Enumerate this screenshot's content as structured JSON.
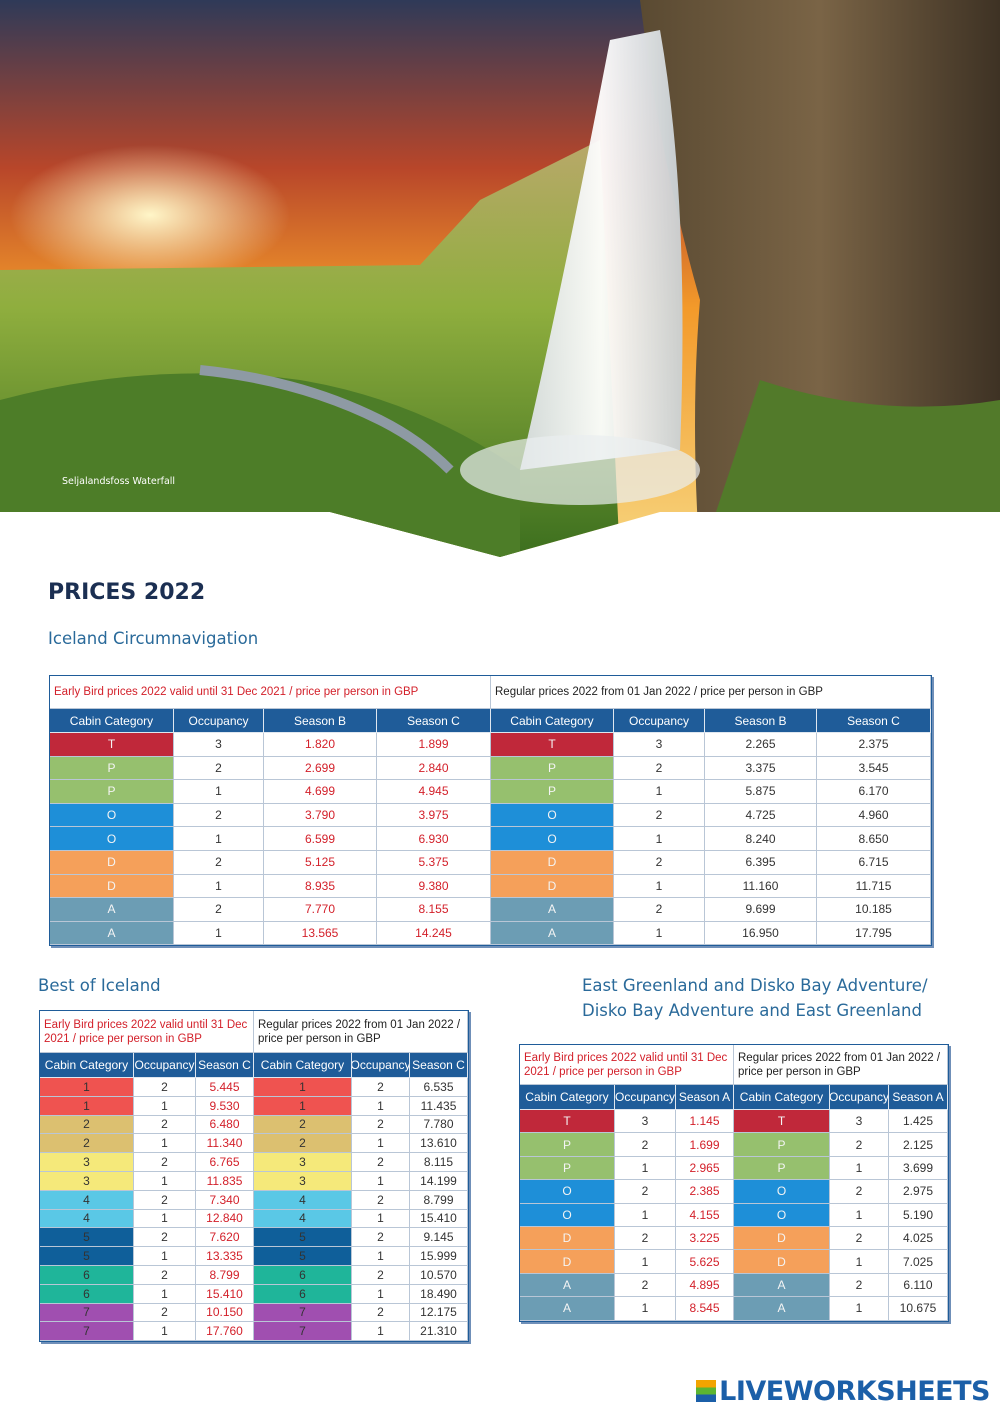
{
  "photo_caption": "Seljalandsfoss Waterfall",
  "heading": "PRICES 2022",
  "sections": [
    {
      "title": "Iceland Circumnavigation",
      "early_caption": "Early Bird prices 2022 valid until 31 Dec 2021 / price per person in GBP",
      "regular_caption": "Regular prices 2022 from 01 Jan 2022 / price per person in GBP",
      "columns": [
        "Cabin Category",
        "Occupancy",
        "Season B",
        "Season C",
        "Cabin Category",
        "Occupancy",
        "Season B",
        "Season C"
      ],
      "row_colors": [
        "#c0283a",
        "#96c06e",
        "#96c06e",
        "#1e8fd8",
        "#1e8fd8",
        "#f5a05a",
        "#f5a05a",
        "#6c9db4",
        "#6c9db4"
      ],
      "rows": [
        [
          "T",
          "3",
          "1.820",
          "1.899",
          "T",
          "3",
          "2.265",
          "2.375"
        ],
        [
          "P",
          "2",
          "2.699",
          "2.840",
          "P",
          "2",
          "3.375",
          "3.545"
        ],
        [
          "P",
          "1",
          "4.699",
          "4.945",
          "P",
          "1",
          "5.875",
          "6.170"
        ],
        [
          "O",
          "2",
          "3.790",
          "3.975",
          "O",
          "2",
          "4.725",
          "4.960"
        ],
        [
          "O",
          "1",
          "6.599",
          "6.930",
          "O",
          "1",
          "8.240",
          "8.650"
        ],
        [
          "D",
          "2",
          "5.125",
          "5.375",
          "D",
          "2",
          "6.395",
          "6.715"
        ],
        [
          "D",
          "1",
          "8.935",
          "9.380",
          "D",
          "1",
          "11.160",
          "11.715"
        ],
        [
          "A",
          "2",
          "7.770",
          "8.155",
          "A",
          "2",
          "9.699",
          "10.185"
        ],
        [
          "A",
          "1",
          "13.565",
          "14.245",
          "A",
          "1",
          "16.950",
          "17.795"
        ]
      ]
    },
    {
      "title": "Best of Iceland",
      "early_caption": "Early Bird prices 2022 valid until 31 Dec 2021 / price per person in GBP",
      "regular_caption": "Regular prices 2022 from 01 Jan 2022 / price per person in GBP",
      "columns": [
        "Cabin Category",
        "Occupancy",
        "Season C",
        "Cabin Category",
        "Occupancy",
        "Season C"
      ],
      "row_colors": [
        "#ef5350",
        "#ef5350",
        "#dcc070",
        "#dcc070",
        "#f5e97a",
        "#f5e97a",
        "#5ac8e6",
        "#5ac8e6",
        "#0f5f9a",
        "#0f5f9a",
        "#1fb59a",
        "#1fb59a",
        "#a04fb0",
        "#a04fb0"
      ],
      "rows": [
        [
          "1",
          "2",
          "5.445",
          "1",
          "2",
          "6.535"
        ],
        [
          "1",
          "1",
          "9.530",
          "1",
          "1",
          "11.435"
        ],
        [
          "2",
          "2",
          "6.480",
          "2",
          "2",
          "7.780"
        ],
        [
          "2",
          "1",
          "11.340",
          "2",
          "1",
          "13.610"
        ],
        [
          "3",
          "2",
          "6.765",
          "3",
          "2",
          "8.115"
        ],
        [
          "3",
          "1",
          "11.835",
          "3",
          "1",
          "14.199"
        ],
        [
          "4",
          "2",
          "7.340",
          "4",
          "2",
          "8.799"
        ],
        [
          "4",
          "1",
          "12.840",
          "4",
          "1",
          "15.410"
        ],
        [
          "5",
          "2",
          "7.620",
          "5",
          "2",
          "9.145"
        ],
        [
          "5",
          "1",
          "13.335",
          "5",
          "1",
          "15.999"
        ],
        [
          "6",
          "2",
          "8.799",
          "6",
          "2",
          "10.570"
        ],
        [
          "6",
          "1",
          "15.410",
          "6",
          "1",
          "18.490"
        ],
        [
          "7",
          "2",
          "10.150",
          "7",
          "2",
          "12.175"
        ],
        [
          "7",
          "1",
          "17.760",
          "7",
          "1",
          "21.310"
        ]
      ]
    },
    {
      "title": [
        "East Greenland and Disko Bay Adventure/",
        "Disko Bay Adventure and East Greenland"
      ],
      "early_caption": "Early Bird prices 2022 valid until 31 Dec 2021 / price per person in GBP",
      "regular_caption": "Regular prices 2022 from 01 Jan 2022 / price per person in GBP",
      "columns": [
        "Cabin Category",
        "Occupancy",
        "Season A",
        "Cabin Category",
        "Occupancy",
        "Season A"
      ],
      "row_colors": [
        "#c0283a",
        "#96c06e",
        "#96c06e",
        "#1e8fd8",
        "#1e8fd8",
        "#f5a05a",
        "#f5a05a",
        "#6c9db4",
        "#6c9db4"
      ],
      "rows": [
        [
          "T",
          "3",
          "1.145",
          "T",
          "3",
          "1.425"
        ],
        [
          "P",
          "2",
          "1.699",
          "P",
          "2",
          "2.125"
        ],
        [
          "P",
          "1",
          "2.965",
          "P",
          "1",
          "3.699"
        ],
        [
          "O",
          "2",
          "2.385",
          "O",
          "2",
          "2.975"
        ],
        [
          "O",
          "1",
          "4.155",
          "O",
          "1",
          "5.190"
        ],
        [
          "D",
          "2",
          "3.225",
          "D",
          "2",
          "4.025"
        ],
        [
          "D",
          "1",
          "5.625",
          "D",
          "1",
          "7.025"
        ],
        [
          "A",
          "2",
          "4.895",
          "A",
          "2",
          "6.110"
        ],
        [
          "A",
          "1",
          "8.545",
          "A",
          "1",
          "10.675"
        ]
      ]
    }
  ],
  "logo": "LIVEWORKSHEETS"
}
